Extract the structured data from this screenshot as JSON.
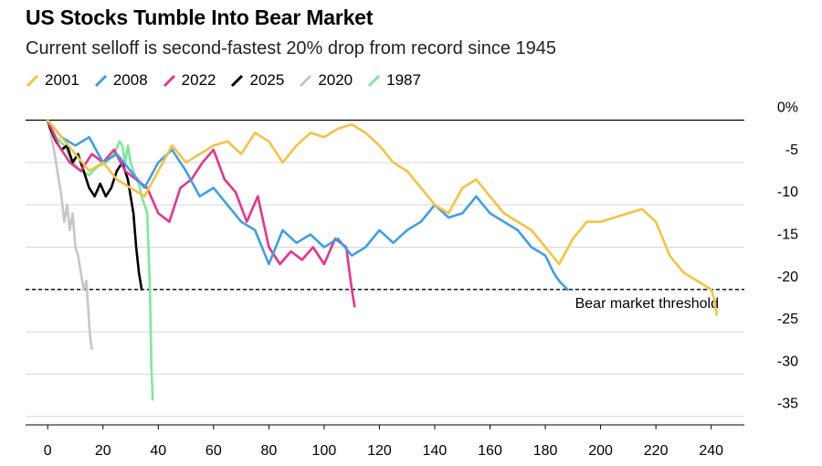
{
  "chart_data": {
    "type": "line",
    "title": "US Stocks Tumble Into Bear Market",
    "subtitle": "Current selloff is second-fastest 20% drop from record since 1945",
    "xlabel": "",
    "ylabel": "",
    "xlim": [
      -8,
      252
    ],
    "ylim": [
      -36,
      2
    ],
    "x_ticks": [
      0,
      20,
      40,
      60,
      80,
      100,
      120,
      140,
      160,
      180,
      200,
      220,
      240
    ],
    "y_ticks": [
      0,
      -5,
      -10,
      -15,
      -20,
      -25,
      -30,
      -35
    ],
    "y_tick_labels": [
      "0%",
      "-5",
      "-10",
      "-15",
      "-20",
      "-25",
      "-30",
      "-35"
    ],
    "threshold": {
      "value": -20,
      "label": "Bear market threshold"
    },
    "legend_position": "top-left",
    "series": [
      {
        "name": "1987",
        "color": "#7ee89a",
        "x": [
          0,
          3,
          6,
          9,
          12,
          15,
          18,
          21,
          24,
          26,
          27,
          28,
          29,
          30,
          31,
          32,
          33,
          34,
          35,
          36,
          37,
          37.5,
          38
        ],
        "y": [
          0,
          -2,
          -3,
          -5,
          -6,
          -6.5,
          -5.5,
          -5,
          -4,
          -2.5,
          -3,
          -5,
          -3,
          -5,
          -6,
          -7,
          -7.5,
          -9,
          -10,
          -11,
          -20,
          -29,
          -33
        ]
      },
      {
        "name": "2020",
        "color": "#c6c6c6",
        "x": [
          0,
          2,
          3,
          4,
          5,
          6,
          7,
          8,
          9,
          10,
          11,
          12,
          13,
          14,
          15,
          15.5,
          16
        ],
        "y": [
          0,
          -3,
          -5,
          -7,
          -9,
          -12,
          -10,
          -13,
          -11,
          -15,
          -16,
          -18,
          -20,
          -19,
          -24,
          -26,
          -27
        ]
      },
      {
        "name": "2025",
        "color": "#000000",
        "x": [
          0,
          1,
          3,
          5,
          7,
          9,
          11,
          13,
          15,
          17,
          19,
          21,
          23,
          25,
          27,
          29,
          30,
          31,
          32,
          33,
          34
        ],
        "y": [
          0,
          -1,
          -2.5,
          -3.5,
          -3,
          -5,
          -4,
          -6,
          -8,
          -9,
          -7.5,
          -9,
          -8,
          -6,
          -5,
          -7,
          -9,
          -11,
          -15,
          -18,
          -20
        ]
      },
      {
        "name": "2022",
        "color": "#e8338c",
        "x": [
          0,
          4,
          8,
          12,
          16,
          20,
          24,
          28,
          32,
          36,
          40,
          44,
          48,
          52,
          56,
          60,
          64,
          68,
          72,
          76,
          80,
          84,
          88,
          92,
          96,
          100,
          104,
          108,
          110,
          111
        ],
        "y": [
          0,
          -3,
          -5,
          -6,
          -4,
          -5,
          -3.5,
          -6,
          -7,
          -8,
          -11,
          -12,
          -8,
          -7,
          -5,
          -3.5,
          -7,
          -8.5,
          -12,
          -9,
          -15,
          -17,
          -15.5,
          -16.5,
          -15,
          -17,
          -14,
          -15,
          -20,
          -22
        ]
      },
      {
        "name": "2008",
        "color": "#3f9ee8",
        "x": [
          0,
          5,
          10,
          15,
          20,
          25,
          30,
          35,
          40,
          45,
          50,
          55,
          60,
          65,
          70,
          75,
          80,
          85,
          90,
          95,
          100,
          105,
          110,
          115,
          120,
          125,
          130,
          135,
          140,
          145,
          150,
          155,
          160,
          165,
          170,
          175,
          180,
          183,
          185,
          188
        ],
        "y": [
          0,
          -2,
          -3,
          -2,
          -5,
          -4,
          -6,
          -8,
          -5,
          -3.5,
          -6,
          -9,
          -8,
          -10,
          -12,
          -13,
          -17,
          -13,
          -14.5,
          -13.5,
          -15,
          -14,
          -16,
          -15,
          -13,
          -14.5,
          -13,
          -12,
          -10,
          -11.5,
          -11,
          -9,
          -11,
          -12,
          -13,
          -15,
          -16,
          -18,
          -19,
          -20
        ]
      },
      {
        "name": "2001",
        "color": "#f5c242",
        "x": [
          0,
          5,
          10,
          15,
          20,
          25,
          30,
          35,
          40,
          45,
          50,
          55,
          60,
          65,
          70,
          75,
          80,
          85,
          90,
          95,
          100,
          105,
          110,
          115,
          120,
          125,
          130,
          135,
          140,
          145,
          150,
          155,
          160,
          165,
          170,
          175,
          180,
          185,
          190,
          195,
          200,
          205,
          210,
          215,
          220,
          225,
          230,
          235,
          240,
          241,
          242
        ],
        "y": [
          0,
          -2,
          -4,
          -6,
          -5,
          -7,
          -8,
          -9,
          -6,
          -3,
          -5,
          -4,
          -3,
          -2.5,
          -4,
          -1.5,
          -2.5,
          -5,
          -3,
          -1.5,
          -2,
          -1,
          -0.5,
          -1.5,
          -3,
          -5,
          -6,
          -8,
          -10,
          -11,
          -8,
          -7,
          -9,
          -11,
          -12,
          -13,
          -15,
          -17,
          -14,
          -12,
          -12,
          -11.5,
          -11,
          -10.5,
          -12,
          -16,
          -18,
          -19,
          -20,
          -21,
          -23
        ]
      }
    ]
  }
}
